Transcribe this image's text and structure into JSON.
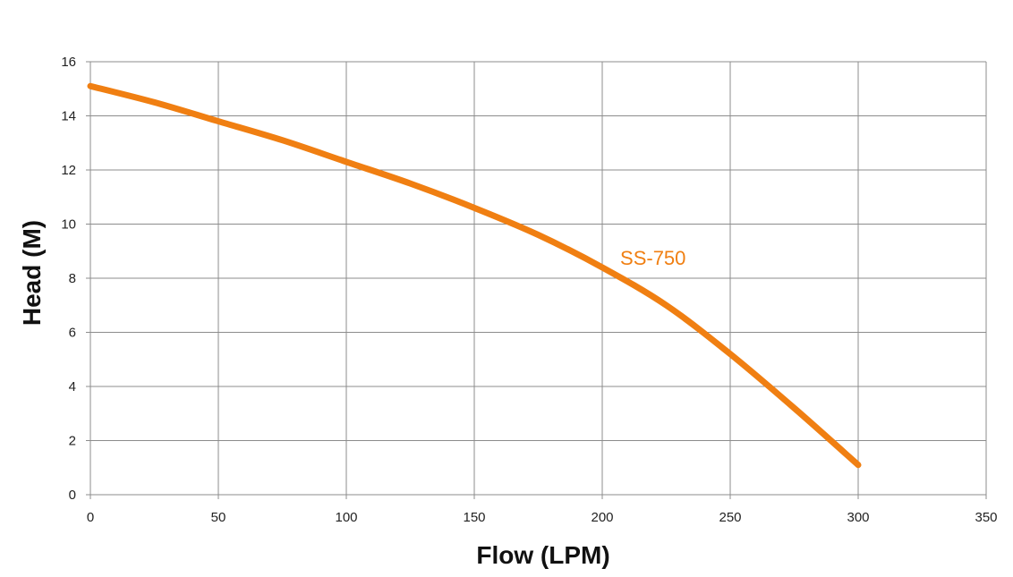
{
  "chart_data": {
    "type": "line",
    "title": "",
    "xlabel": "Flow (LPM)",
    "ylabel": "Head (M)",
    "xlim": [
      0,
      350
    ],
    "ylim": [
      0,
      16
    ],
    "x_ticks": [
      0,
      50,
      100,
      150,
      200,
      250,
      300,
      350
    ],
    "y_ticks": [
      0,
      2,
      4,
      6,
      8,
      10,
      12,
      14,
      16
    ],
    "grid": true,
    "legend": "none",
    "series": [
      {
        "name": "SS-750",
        "color": "#F07F12",
        "x": [
          0,
          25,
          50,
          75,
          100,
          125,
          150,
          175,
          200,
          225,
          250,
          275,
          300
        ],
        "y": [
          15.1,
          14.5,
          13.8,
          13.1,
          12.3,
          11.5,
          10.6,
          9.6,
          8.4,
          7.0,
          5.2,
          3.2,
          1.1
        ],
        "label_at": [
          207,
          8.5
        ]
      }
    ]
  }
}
